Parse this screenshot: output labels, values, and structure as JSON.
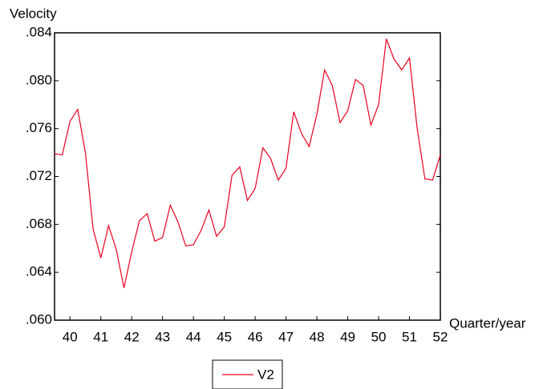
{
  "chart_data": {
    "type": "line",
    "y_label": "Velocity",
    "x_label": "Quarter/year",
    "x": [
      39.5,
      39.75,
      40,
      40.25,
      40.5,
      40.75,
      41,
      41.25,
      41.5,
      41.75,
      42,
      42.25,
      42.5,
      42.75,
      43,
      43.25,
      43.5,
      43.75,
      44,
      44.25,
      44.5,
      44.75,
      45,
      45.25,
      45.5,
      45.75,
      46,
      46.25,
      46.5,
      46.75,
      47,
      47.25,
      47.5,
      47.75,
      48,
      48.25,
      48.5,
      48.75,
      49,
      49.25,
      49.5,
      49.75,
      50,
      50.25,
      50.5,
      50.75,
      51,
      51.25,
      51.5,
      51.75,
      52
    ],
    "series": [
      {
        "name": "V2",
        "color": "#e8001c",
        "values": [
          0.0739,
          0.0738,
          0.0766,
          0.0776,
          0.074,
          0.0676,
          0.0652,
          0.0679,
          0.0659,
          0.0627,
          0.0657,
          0.0683,
          0.0689,
          0.0666,
          0.0669,
          0.0696,
          0.0682,
          0.0662,
          0.0663,
          0.0675,
          0.0692,
          0.067,
          0.0678,
          0.0721,
          0.0728,
          0.07,
          0.071,
          0.0744,
          0.0735,
          0.0717,
          0.0727,
          0.0774,
          0.0756,
          0.0745,
          0.0772,
          0.0809,
          0.0796,
          0.0765,
          0.0775,
          0.0801,
          0.0796,
          0.0763,
          0.078,
          0.0835,
          0.0818,
          0.0809,
          0.0819,
          0.076,
          0.0718,
          0.0717,
          0.0738
        ]
      }
    ],
    "xlim": [
      39.5,
      52
    ],
    "xticks": [
      40,
      41,
      42,
      43,
      44,
      45,
      46,
      47,
      48,
      49,
      50,
      51,
      52
    ],
    "ylim": [
      0.06,
      0.084
    ],
    "yticks": [
      {
        "value": 0.06,
        "label": ".060"
      },
      {
        "value": 0.064,
        "label": ".064"
      },
      {
        "value": 0.068,
        "label": ".068"
      },
      {
        "value": 0.072,
        "label": ".072"
      },
      {
        "value": 0.076,
        "label": ".076"
      },
      {
        "value": 0.08,
        "label": ".080"
      },
      {
        "value": 0.084,
        "label": ".084"
      }
    ],
    "grid": false
  }
}
